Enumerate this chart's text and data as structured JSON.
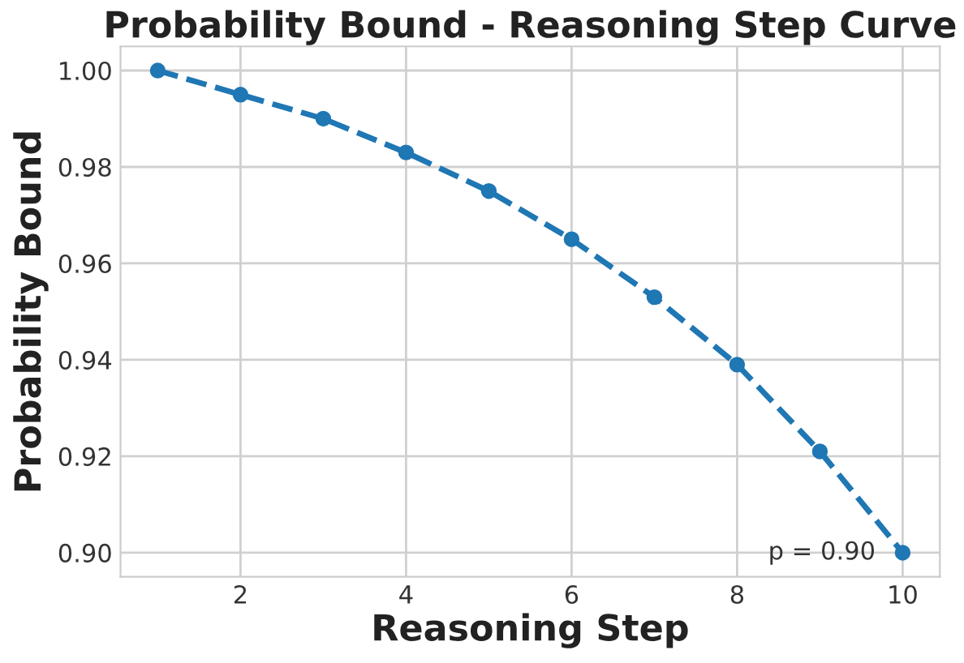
{
  "chart_data": {
    "type": "line",
    "title": "Probability Bound - Reasoning Step Curve",
    "xlabel": "Reasoning Step",
    "ylabel": "Probability Bound",
    "x": [
      1,
      2,
      3,
      4,
      5,
      6,
      7,
      8,
      9,
      10
    ],
    "series": [
      {
        "color": "#1f77b4",
        "values": [
          1.0,
          0.995,
          0.99,
          0.983,
          0.975,
          0.965,
          0.953,
          0.939,
          0.921,
          0.9
        ]
      }
    ],
    "xlim": [
      0.55,
      10.45
    ],
    "xticks": [
      2,
      4,
      6,
      8,
      10
    ],
    "ylim": [
      0.895,
      1.005
    ],
    "yticks": [
      {
        "value": 0.9,
        "label": "0.90"
      },
      {
        "value": 0.92,
        "label": "0.92"
      },
      {
        "value": 0.94,
        "label": "0.94"
      },
      {
        "value": 0.96,
        "label": "0.96"
      },
      {
        "value": 0.98,
        "label": "0.98"
      },
      {
        "value": 1.0,
        "label": "1.00"
      }
    ],
    "grid": true,
    "marker": "circle",
    "line_style": "dashed",
    "annotations": [
      {
        "text": "p = 0.90",
        "x": 10,
        "y": 0.9
      }
    ]
  }
}
